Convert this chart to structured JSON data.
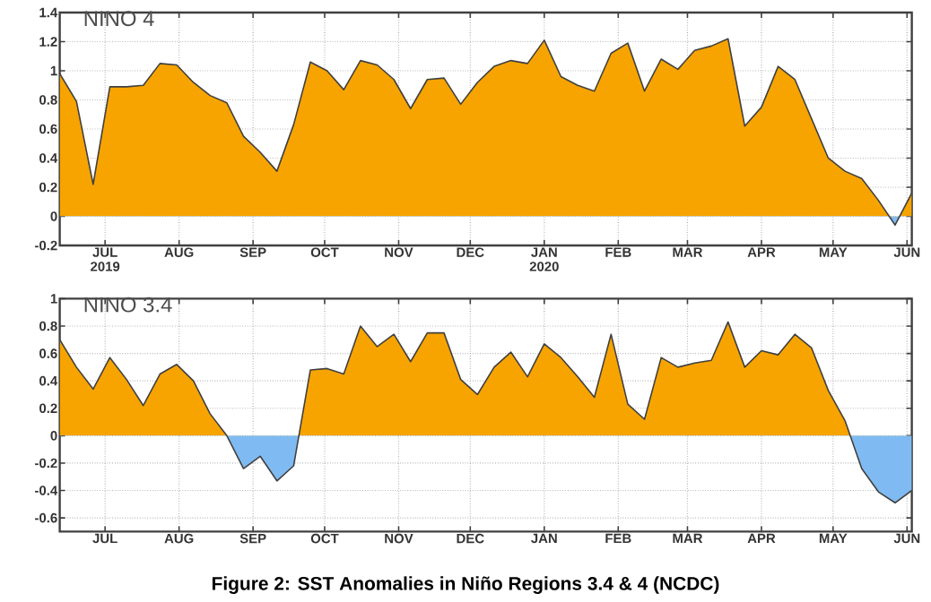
{
  "chart_data": [
    {
      "type": "area",
      "title": "NINO 4",
      "x": [
        "2019-06-12",
        "2019-06-19",
        "2019-06-26",
        "2019-07-03",
        "2019-07-10",
        "2019-07-17",
        "2019-07-24",
        "2019-07-31",
        "2019-08-07",
        "2019-08-14",
        "2019-08-21",
        "2019-08-28",
        "2019-09-04",
        "2019-09-11",
        "2019-09-18",
        "2019-09-25",
        "2019-10-02",
        "2019-10-09",
        "2019-10-16",
        "2019-10-23",
        "2019-10-30",
        "2019-11-06",
        "2019-11-13",
        "2019-11-20",
        "2019-11-27",
        "2019-12-04",
        "2019-12-11",
        "2019-12-18",
        "2019-12-25",
        "2020-01-01",
        "2020-01-08",
        "2020-01-15",
        "2020-01-22",
        "2020-01-29",
        "2020-02-05",
        "2020-02-12",
        "2020-02-19",
        "2020-02-26",
        "2020-03-04",
        "2020-03-11",
        "2020-03-18",
        "2020-03-25",
        "2020-04-01",
        "2020-04-08",
        "2020-04-15",
        "2020-04-22",
        "2020-04-29",
        "2020-05-06",
        "2020-05-13",
        "2020-05-20",
        "2020-05-27",
        "2020-06-03"
      ],
      "series": [
        {
          "values": [
            0.98,
            0.79,
            0.22,
            0.89,
            0.89,
            0.9,
            1.05,
            1.04,
            0.92,
            0.83,
            0.78,
            0.55,
            0.44,
            0.31,
            0.63,
            1.06,
            1.0,
            0.87,
            1.07,
            1.04,
            0.94,
            0.74,
            0.94,
            0.95,
            0.77,
            0.92,
            1.03,
            1.07,
            1.05,
            1.21,
            0.96,
            0.9,
            0.86,
            1.12,
            1.19,
            0.86,
            1.08,
            1.01,
            1.14,
            1.17,
            1.22,
            0.62,
            0.75,
            1.03,
            0.94,
            0.67,
            0.4,
            0.31,
            0.26,
            0.11,
            -0.06,
            0.16
          ],
          "colors": [
            "#f7a400",
            "#f7a400",
            "#f7a400",
            "#f7a400",
            "#f7a400",
            "#f7a400",
            "#f7a400",
            "#f7a400",
            "#f7a400",
            "#f7a400",
            "#f7a400",
            "#f7a400",
            "#f7a400",
            "#f7a400",
            "#f7a400",
            "#f7a400",
            "#f7a400",
            "#f7a400",
            "#f7a400",
            "#f7a400",
            "#f7a400",
            "#f7a400",
            "#f7a400",
            "#f7a400",
            "#f7a400",
            "#f7a400",
            "#f7a400",
            "#f7a400",
            "#f7a400",
            "#f7a400",
            "#f7a400",
            "#f7a400",
            "#f7a400",
            "#f7a400",
            "#f7a400",
            "#f7a400",
            "#f7a400",
            "#f7a400",
            "#f7a400",
            "#f7a400",
            "#f7a400",
            "#f7a400",
            "#f7a400",
            "#f7a400",
            "#f7a400",
            "#f7a400",
            "#f7a400",
            "#f7a400",
            "#f7a400",
            "#f7a400",
            "#7fbbf2",
            "#f7a400"
          ]
        }
      ],
      "xlim": [
        "2019-06-12",
        "2020-06-03"
      ],
      "xticks": [
        {
          "value": "2019-07-01",
          "label": "JUL 2019"
        },
        {
          "value": "2019-08-01",
          "label": "AUG"
        },
        {
          "value": "2019-09-01",
          "label": "SEP"
        },
        {
          "value": "2019-10-01",
          "label": "OCT"
        },
        {
          "value": "2019-11-01",
          "label": "NOV"
        },
        {
          "value": "2019-12-01",
          "label": "DEC"
        },
        {
          "value": "2020-01-01",
          "label": "JAN 2020"
        },
        {
          "value": "2020-02-01",
          "label": "FEB"
        },
        {
          "value": "2020-03-01",
          "label": "MAR"
        },
        {
          "value": "2020-04-01",
          "label": "APR"
        },
        {
          "value": "2020-05-01",
          "label": "MAY"
        },
        {
          "value": "2020-06-01",
          "label": "JUN"
        }
      ],
      "ylim": [
        -0.2,
        1.4
      ],
      "yticks": [
        -0.2,
        0,
        0.2,
        0.4,
        0.6,
        0.8,
        1,
        1.2,
        1.4
      ],
      "grid": true
    },
    {
      "type": "area",
      "title": "NINO 3.4",
      "x": [
        "2019-06-12",
        "2019-06-19",
        "2019-06-26",
        "2019-07-03",
        "2019-07-10",
        "2019-07-17",
        "2019-07-24",
        "2019-07-31",
        "2019-08-07",
        "2019-08-14",
        "2019-08-21",
        "2019-08-28",
        "2019-09-04",
        "2019-09-11",
        "2019-09-18",
        "2019-09-25",
        "2019-10-02",
        "2019-10-09",
        "2019-10-16",
        "2019-10-23",
        "2019-10-30",
        "2019-11-06",
        "2019-11-13",
        "2019-11-20",
        "2019-11-27",
        "2019-12-04",
        "2019-12-11",
        "2019-12-18",
        "2019-12-25",
        "2020-01-01",
        "2020-01-08",
        "2020-01-15",
        "2020-01-22",
        "2020-01-29",
        "2020-02-05",
        "2020-02-12",
        "2020-02-19",
        "2020-02-26",
        "2020-03-04",
        "2020-03-11",
        "2020-03-18",
        "2020-03-25",
        "2020-04-01",
        "2020-04-08",
        "2020-04-15",
        "2020-04-22",
        "2020-04-29",
        "2020-05-06",
        "2020-05-13",
        "2020-05-20",
        "2020-05-27",
        "2020-06-03"
      ],
      "series": [
        {
          "values": [
            0.7,
            0.5,
            0.34,
            0.57,
            0.41,
            0.22,
            0.45,
            0.52,
            0.4,
            0.16,
            0.0,
            -0.24,
            -0.15,
            -0.33,
            -0.22,
            0.48,
            0.49,
            0.45,
            0.8,
            0.65,
            0.74,
            0.54,
            0.75,
            0.75,
            0.41,
            0.3,
            0.5,
            0.61,
            0.43,
            0.67,
            0.57,
            0.43,
            0.28,
            0.74,
            0.23,
            0.12,
            0.57,
            0.5,
            0.53,
            0.55,
            0.83,
            0.5,
            0.62,
            0.59,
            0.74,
            0.64,
            0.33,
            0.11,
            -0.24,
            -0.41,
            -0.49,
            -0.4
          ],
          "colors": [
            "#f7a400",
            "#f7a400",
            "#f7a400",
            "#f7a400",
            "#f7a400",
            "#f7a400",
            "#f7a400",
            "#f7a400",
            "#f7a400",
            "#f7a400",
            "#f7a400",
            "#7fbbf2",
            "#7fbbf2",
            "#7fbbf2",
            "#7fbbf2",
            "#f7a400",
            "#f7a400",
            "#f7a400",
            "#f7a400",
            "#f7a400",
            "#f7a400",
            "#f7a400",
            "#f7a400",
            "#f7a400",
            "#f7a400",
            "#f7a400",
            "#f7a400",
            "#f7a400",
            "#f7a400",
            "#f7a400",
            "#f7a400",
            "#f7a400",
            "#f7a400",
            "#f7a400",
            "#f7a400",
            "#f7a400",
            "#f7a400",
            "#f7a400",
            "#f7a400",
            "#f7a400",
            "#f7a400",
            "#f7a400",
            "#f7a400",
            "#f7a400",
            "#f7a400",
            "#f7a400",
            "#f7a400",
            "#f7a400",
            "#7fbbf2",
            "#7fbbf2",
            "#7fbbf2",
            "#7fbbf2"
          ]
        }
      ],
      "xlim": [
        "2019-06-12",
        "2020-06-03"
      ],
      "xticks": [
        {
          "value": "2019-07-01",
          "label": "JUL"
        },
        {
          "value": "2019-08-01",
          "label": "AUG"
        },
        {
          "value": "2019-09-01",
          "label": "SEP"
        },
        {
          "value": "2019-10-01",
          "label": "OCT"
        },
        {
          "value": "2019-11-01",
          "label": "NOV"
        },
        {
          "value": "2019-12-01",
          "label": "DEC"
        },
        {
          "value": "2020-01-01",
          "label": "JAN"
        },
        {
          "value": "2020-02-01",
          "label": "FEB"
        },
        {
          "value": "2020-03-01",
          "label": "MAR"
        },
        {
          "value": "2020-04-01",
          "label": "APR"
        },
        {
          "value": "2020-05-01",
          "label": "MAY"
        },
        {
          "value": "2020-06-01",
          "label": "JUN"
        }
      ],
      "ylim": [
        -0.7,
        1
      ],
      "yticks": [
        -0.6,
        -0.4,
        -0.2,
        0,
        0.2,
        0.4,
        0.6,
        0.8,
        1
      ],
      "grid": true,
      "annotations": [
        "Figure 2: SST Anomalies in Niño Regions 3.4 & 4 (NCDC)"
      ]
    }
  ]
}
